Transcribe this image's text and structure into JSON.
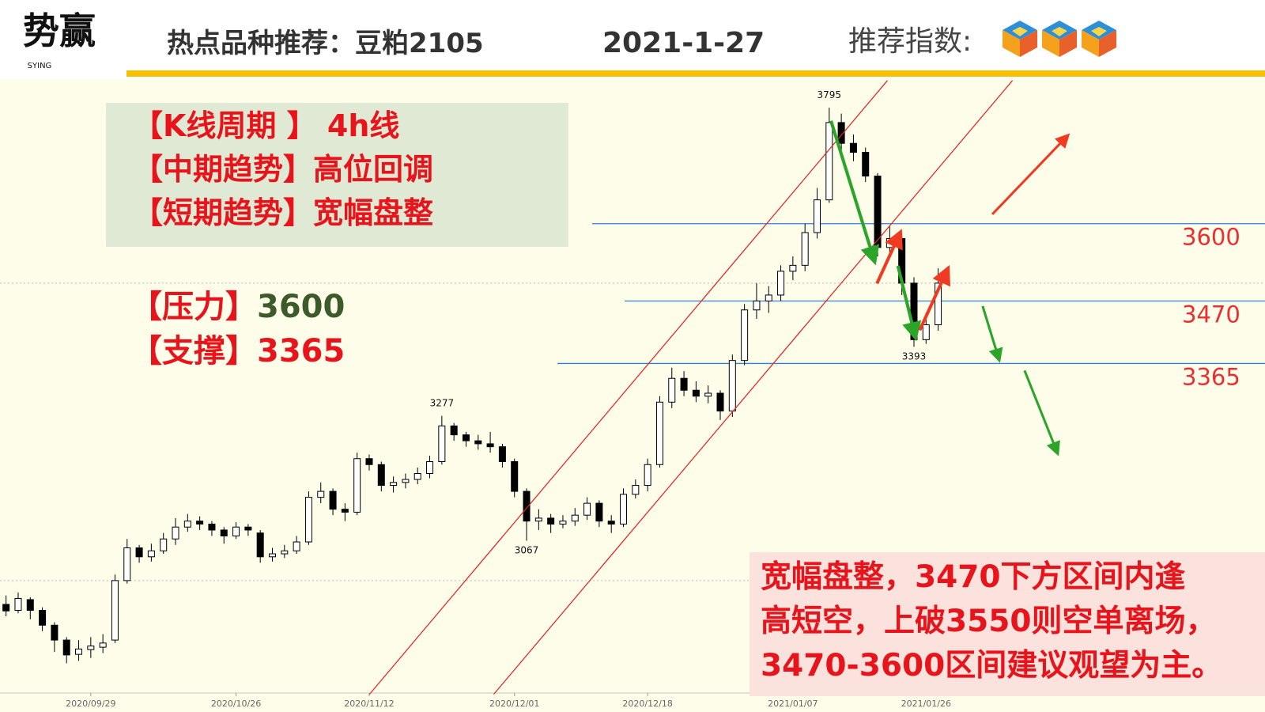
{
  "header": {
    "logo": "势赢",
    "logo_sub": "SYING",
    "title": "热点品种推荐：豆粕2105",
    "date": "2021-1-27",
    "rating_label": "推荐指数:"
  },
  "info_box": [
    "【K线周期 】 4h线",
    "【中期趋势】高位回调",
    "【短期趋势】宽幅盘整"
  ],
  "levels_text": [
    {
      "label": "【压力】",
      "value": 3600
    },
    {
      "label": "【支撑】",
      "value": 3365
    }
  ],
  "comment": [
    "宽幅盘整，3470下方区间内逢",
    "高短空，上破3550则空单离场，",
    "3470-3600区间建议观望为主。"
  ],
  "chart_data": {
    "type": "candlestick",
    "up_color": "#ffffff",
    "down_color": "#000000",
    "level_color": "#2f7fd6",
    "level_label_color": "#e83030",
    "ylim": [
      2811,
      3843
    ],
    "xlim": [
      -0.5,
      104
    ],
    "grid_lines": [
      3000,
      3500
    ],
    "xticks": [
      {
        "value": 7,
        "label": "2020/09/29"
      },
      {
        "value": 19,
        "label": "2020/10/26"
      },
      {
        "value": 30,
        "label": "2020/11/12"
      },
      {
        "value": 42,
        "label": "2020/12/01"
      },
      {
        "value": 53,
        "label": "2020/12/18"
      },
      {
        "value": 65,
        "label": "2021/01/07"
      },
      {
        "value": 76,
        "label": "2021/01/26"
      }
    ],
    "levels": [
      3600,
      3470,
      3365
    ],
    "extreme_labels": [
      3795,
      3277,
      3067,
      3393
    ],
    "ohlc": [
      [
        2960,
        2975,
        2940,
        2949
      ],
      [
        2950,
        2980,
        2945,
        2970
      ],
      [
        2968,
        2972,
        2935,
        2950
      ],
      [
        2950,
        2955,
        2915,
        2925
      ],
      [
        2925,
        2930,
        2880,
        2900
      ],
      [
        2900,
        2905,
        2861,
        2875
      ],
      [
        2876,
        2900,
        2865,
        2885
      ],
      [
        2884,
        2905,
        2870,
        2890
      ],
      [
        2888,
        2910,
        2878,
        2895
      ],
      [
        2900,
        3010,
        2895,
        3000
      ],
      [
        3000,
        3070,
        2995,
        3055
      ],
      [
        3055,
        3060,
        3030,
        3040
      ],
      [
        3040,
        3062,
        3032,
        3050
      ],
      [
        3050,
        3080,
        3045,
        3070
      ],
      [
        3070,
        3105,
        3060,
        3090
      ],
      [
        3090,
        3112,
        3082,
        3100
      ],
      [
        3100,
        3108,
        3085,
        3095
      ],
      [
        3095,
        3100,
        3075,
        3085
      ],
      [
        3085,
        3090,
        3062,
        3075
      ],
      [
        3075,
        3098,
        3070,
        3090
      ],
      [
        3090,
        3095,
        3075,
        3085
      ],
      [
        3080,
        3085,
        3030,
        3040
      ],
      [
        3040,
        3055,
        3032,
        3045
      ],
      [
        3045,
        3060,
        3038,
        3050
      ],
      [
        3050,
        3075,
        3045,
        3065
      ],
      [
        3065,
        3150,
        3060,
        3140
      ],
      [
        3140,
        3165,
        3130,
        3150
      ],
      [
        3150,
        3155,
        3110,
        3120
      ],
      [
        3120,
        3130,
        3100,
        3115
      ],
      [
        3115,
        3215,
        3110,
        3205
      ],
      [
        3205,
        3212,
        3185,
        3195
      ],
      [
        3195,
        3200,
        3150,
        3160
      ],
      [
        3160,
        3175,
        3148,
        3165
      ],
      [
        3165,
        3180,
        3155,
        3170
      ],
      [
        3170,
        3190,
        3162,
        3180
      ],
      [
        3180,
        3210,
        3172,
        3200
      ],
      [
        3200,
        3277,
        3195,
        3260
      ],
      [
        3260,
        3265,
        3235,
        3245
      ],
      [
        3245,
        3250,
        3225,
        3235
      ],
      [
        3235,
        3245,
        3220,
        3230
      ],
      [
        3230,
        3250,
        3215,
        3225
      ],
      [
        3225,
        3230,
        3190,
        3200
      ],
      [
        3200,
        3205,
        3140,
        3150
      ],
      [
        3150,
        3155,
        3067,
        3100
      ],
      [
        3100,
        3120,
        3085,
        3105
      ],
      [
        3105,
        3112,
        3080,
        3095
      ],
      [
        3095,
        3110,
        3088,
        3100
      ],
      [
        3100,
        3122,
        3092,
        3110
      ],
      [
        3110,
        3140,
        3102,
        3130
      ],
      [
        3130,
        3135,
        3090,
        3100
      ],
      [
        3100,
        3110,
        3080,
        3095
      ],
      [
        3095,
        3155,
        3090,
        3145
      ],
      [
        3145,
        3170,
        3138,
        3160
      ],
      [
        3160,
        3205,
        3150,
        3195
      ],
      [
        3195,
        3310,
        3190,
        3300
      ],
      [
        3300,
        3358,
        3290,
        3340
      ],
      [
        3340,
        3352,
        3310,
        3320
      ],
      [
        3320,
        3335,
        3300,
        3310
      ],
      [
        3310,
        3328,
        3298,
        3315
      ],
      [
        3315,
        3320,
        3270,
        3285
      ],
      [
        3285,
        3380,
        3275,
        3370
      ],
      [
        3370,
        3465,
        3362,
        3455
      ],
      [
        3455,
        3500,
        3440,
        3470
      ],
      [
        3470,
        3495,
        3450,
        3480
      ],
      [
        3480,
        3530,
        3470,
        3520
      ],
      [
        3520,
        3545,
        3505,
        3530
      ],
      [
        3530,
        3600,
        3520,
        3585
      ],
      [
        3585,
        3660,
        3575,
        3640
      ],
      [
        3640,
        3795,
        3635,
        3770
      ],
      [
        3770,
        3785,
        3720,
        3735
      ],
      [
        3735,
        3750,
        3705,
        3720
      ],
      [
        3720,
        3728,
        3670,
        3680
      ],
      [
        3680,
        3685,
        3545,
        3560
      ],
      [
        3560,
        3595,
        3550,
        3575
      ],
      [
        3575,
        3580,
        3480,
        3500
      ],
      [
        3500,
        3510,
        3393,
        3405
      ],
      [
        3405,
        3450,
        3398,
        3430
      ],
      [
        3430,
        3525,
        3420,
        3500
      ]
    ]
  }
}
